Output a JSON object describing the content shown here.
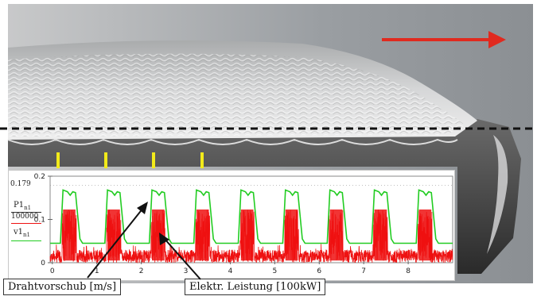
{
  "colors": {
    "direction_arrow": "#e02a1f",
    "cut_line": "#111111",
    "wire_feed_series": "#22cc22",
    "power_series": "#ee1111",
    "tick_marks": "#f2ea1a"
  },
  "inset_chart": {
    "y_axis": {
      "marker_value": "0.179",
      "ticks": [
        "0.2",
        "0.1",
        "0"
      ],
      "label_top": "P1",
      "label_top_sub": "n1",
      "label_divisor": "100000",
      "label_bottom": "v1",
      "label_bottom_sub": "n1"
    },
    "x_ticks": [
      "0",
      "1",
      "2",
      "3",
      "4",
      "5",
      "6",
      "7",
      "8"
    ]
  },
  "chart_data": {
    "type": "line",
    "x": [
      0,
      1,
      2,
      3,
      4,
      5,
      6,
      7,
      8
    ],
    "ylim": [
      0,
      0.2
    ],
    "xlim": [
      -0.05,
      9.0
    ],
    "series": [
      {
        "name": "v1",
        "color": "#22cc22"
      },
      {
        "name": "P1/100000",
        "color": "#ee1111"
      }
    ],
    "pulse": {
      "period": 1.0,
      "start": 0.22,
      "on_duration": 0.32,
      "v_high": 0.168,
      "v_low": 0.045,
      "p_high": 0.123,
      "p_low": 0.015
    }
  },
  "callouts": {
    "wire_feed": "Drahtvorschub [m/s]",
    "power": "Elektr. Leistung [100kW]"
  }
}
